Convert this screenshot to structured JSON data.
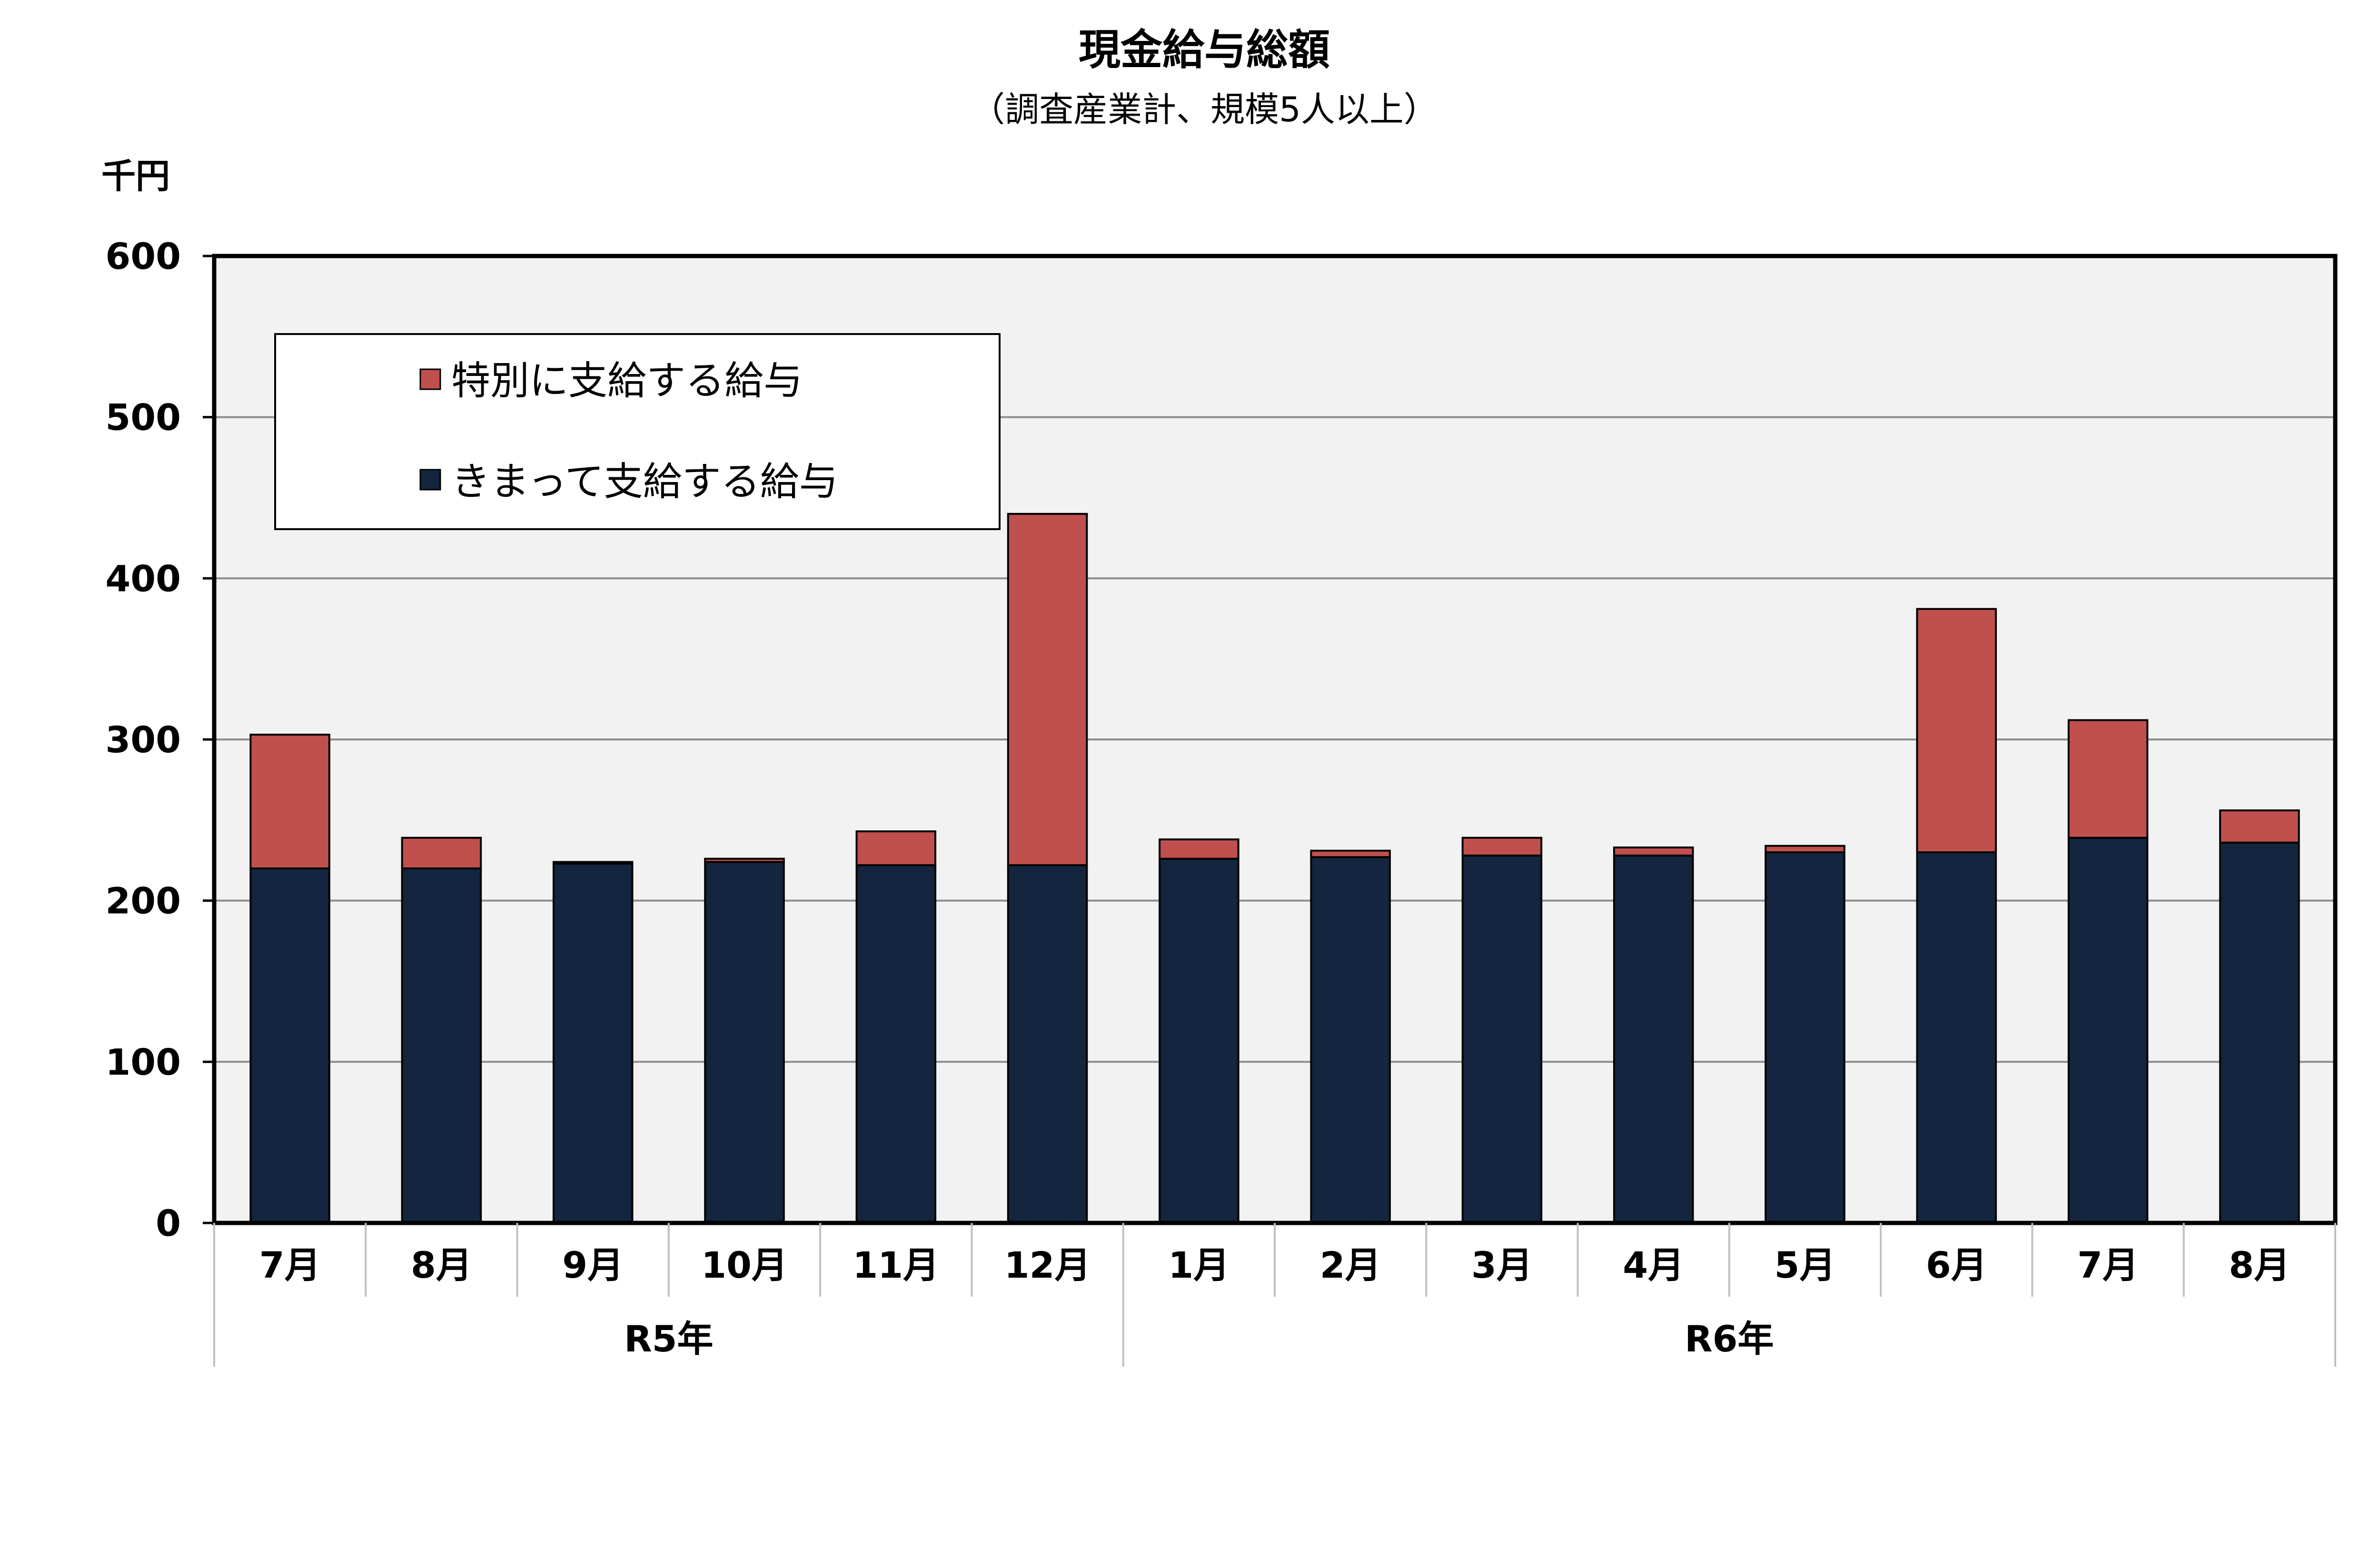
{
  "chart_data": {
    "type": "bar",
    "stacked": true,
    "title": "現金給与総額",
    "subtitle": "（調査産業計、規模5人以上）",
    "ylabel": "千円",
    "xlabel": "",
    "ylim": [
      0,
      600
    ],
    "yticks": [
      0,
      100,
      200,
      300,
      400,
      500,
      600
    ],
    "grid": true,
    "legend_position": "top-left",
    "categories": [
      "7月",
      "8月",
      "9月",
      "10月",
      "11月",
      "12月",
      "1月",
      "2月",
      "3月",
      "4月",
      "5月",
      "6月",
      "7月",
      "8月"
    ],
    "groups": [
      {
        "label": "R5年",
        "start": 0,
        "count": 6
      },
      {
        "label": "R6年",
        "start": 6,
        "count": 8
      }
    ],
    "series": [
      {
        "name": "きまって支給する給与",
        "color": "#13253f",
        "values": [
          220,
          220,
          223,
          224,
          222,
          222,
          226,
          227,
          228,
          228,
          230,
          230,
          239,
          236
        ]
      },
      {
        "name": "特別に支給する給与",
        "color": "#c0504d",
        "values": [
          83,
          19,
          1,
          2,
          21,
          218,
          12,
          4,
          11,
          5,
          4,
          151,
          73,
          20
        ]
      }
    ],
    "legend_order": [
      "特別に支給する給与",
      "きまって支給する給与"
    ],
    "colors": {
      "plot_bg": "#f2f2f2",
      "grid": "#8c8c8c",
      "axis": "#000000"
    }
  }
}
